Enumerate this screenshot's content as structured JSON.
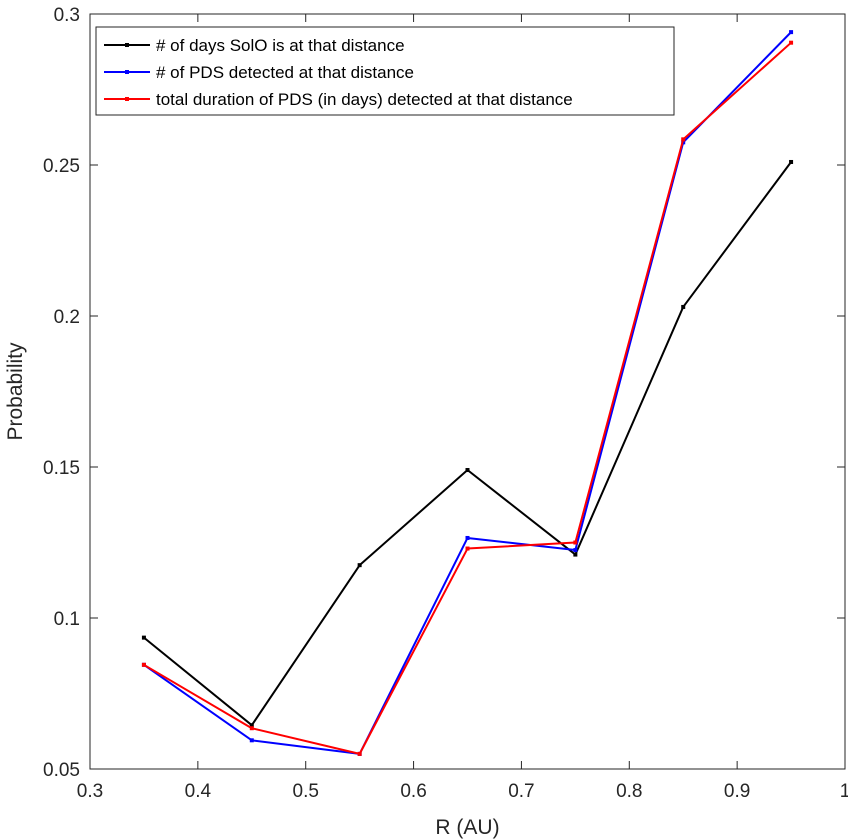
{
  "chart_data": {
    "type": "line",
    "xlabel": "R (AU)",
    "ylabel": "Probability",
    "xlim": [
      0.3,
      1.0
    ],
    "ylim": [
      0.05,
      0.3
    ],
    "xticks": [
      "0.3",
      "0.4",
      "0.5",
      "0.6",
      "0.7",
      "0.8",
      "0.9",
      "1"
    ],
    "yticks": [
      "0.05",
      "0.1",
      "0.15",
      "0.2",
      "0.25",
      "0.3"
    ],
    "grid": false,
    "legend_position": "top-left",
    "x": [
      0.35,
      0.45,
      0.55,
      0.65,
      0.75,
      0.85,
      0.95
    ],
    "series": [
      {
        "name": "# of days SolO is at that distance",
        "color": "#000000",
        "values": [
          0.0935,
          0.0645,
          0.1175,
          0.149,
          0.121,
          0.203,
          0.251
        ]
      },
      {
        "name": "# of PDS detected at that distance",
        "color": "#0000ff",
        "values": [
          0.0845,
          0.0595,
          0.055,
          0.1265,
          0.1225,
          0.2575,
          0.294
        ]
      },
      {
        "name": "total duration of PDS (in days) detected at that distance",
        "color": "#ff0000",
        "values": [
          0.0845,
          0.0635,
          0.055,
          0.123,
          0.125,
          0.2585,
          0.2905
        ]
      }
    ]
  }
}
